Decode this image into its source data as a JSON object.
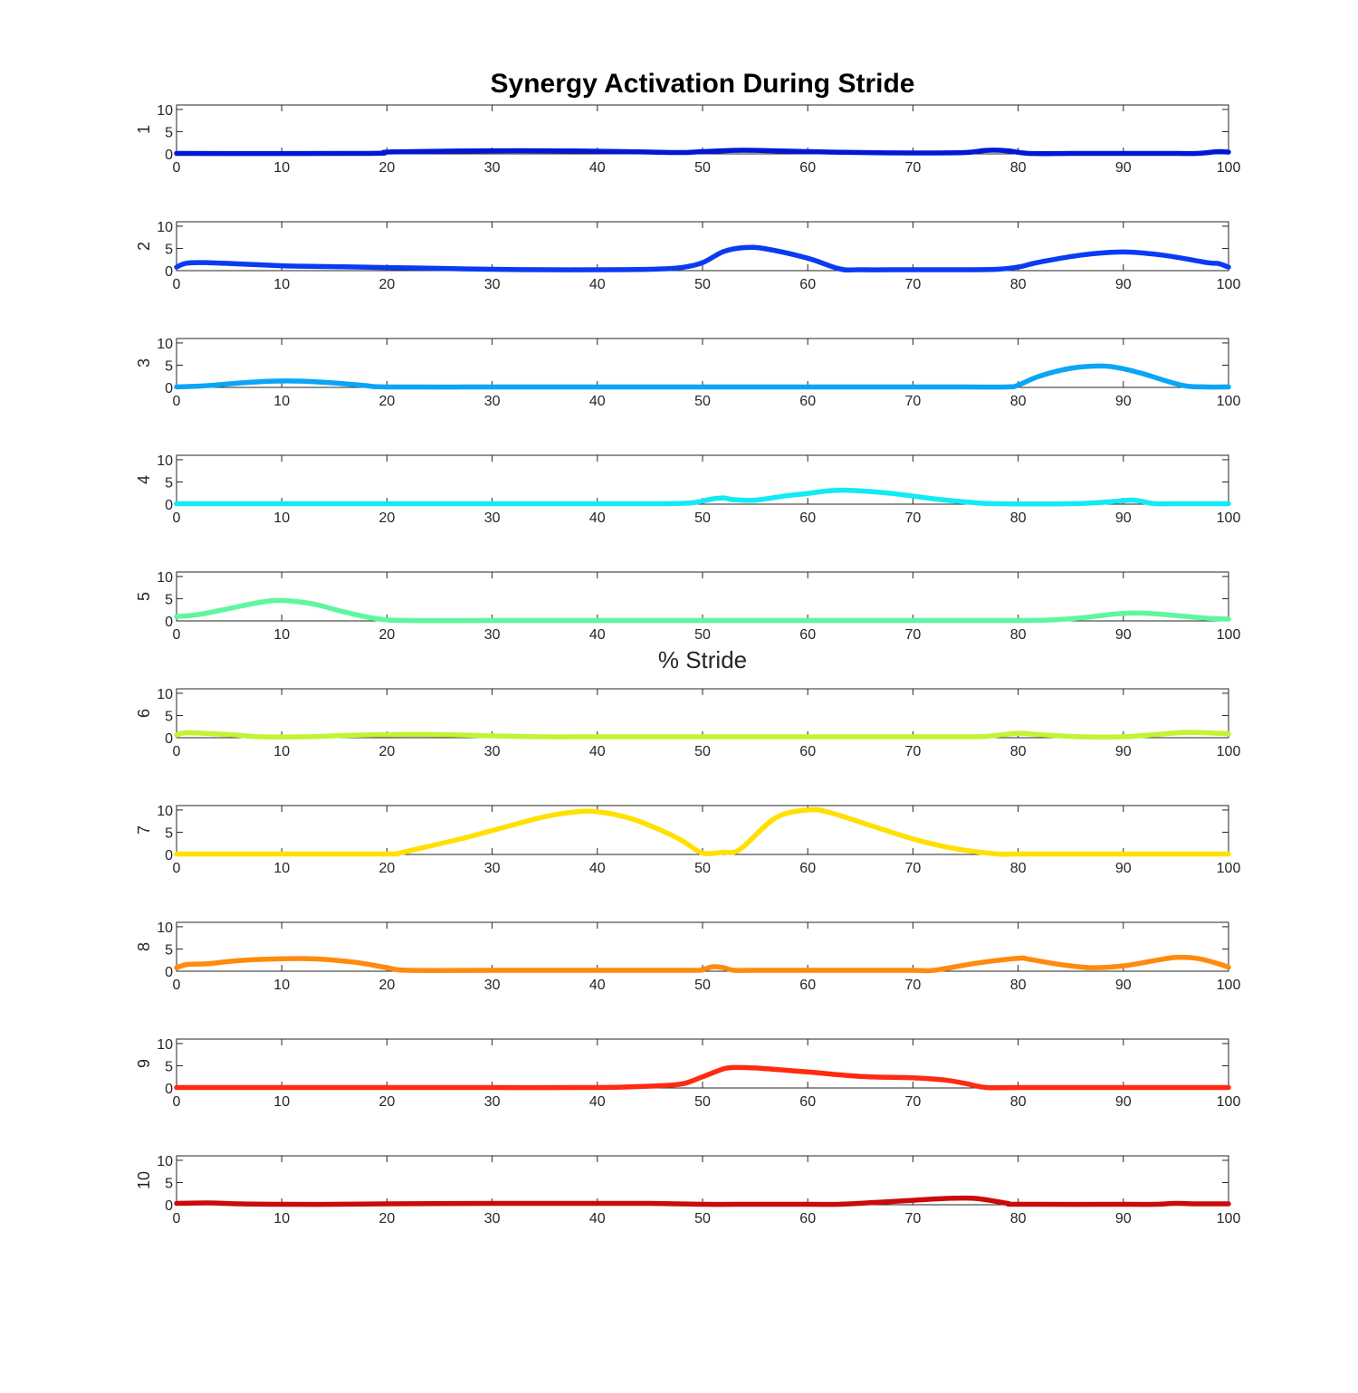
{
  "chart_data": {
    "type": "line",
    "title": "Synergy Activation During Stride",
    "xlabel": "% Stride",
    "xlim": [
      0,
      100
    ],
    "ylim": [
      0,
      11
    ],
    "x_ticks": [
      "0",
      "10",
      "20",
      "30",
      "40",
      "50",
      "60",
      "70",
      "80",
      "90",
      "100"
    ],
    "y_ticks": [
      "0",
      "5",
      "10"
    ],
    "grid": false,
    "panels": [
      {
        "ylabel": "1",
        "color": "#0018d6",
        "x": [
          0,
          18,
          20,
          25,
          30,
          35,
          40,
          45,
          48,
          50,
          53,
          55,
          60,
          65,
          70,
          75,
          77,
          79,
          81,
          85,
          90,
          95,
          97,
          99,
          100
        ],
        "y": [
          0.1,
          0.1,
          0.4,
          0.6,
          0.7,
          0.7,
          0.6,
          0.4,
          0.3,
          0.5,
          0.8,
          0.8,
          0.5,
          0.3,
          0.2,
          0.3,
          0.8,
          0.7,
          0.1,
          0.1,
          0.1,
          0.1,
          0.1,
          0.5,
          0.4
        ]
      },
      {
        "ylabel": "2",
        "color": "#0a3bf2",
        "x": [
          0,
          1,
          3,
          6,
          10,
          12,
          15,
          20,
          25,
          30,
          35,
          40,
          45,
          48,
          50,
          52,
          54,
          56,
          60,
          63,
          65,
          70,
          75,
          78,
          80,
          82,
          86,
          90,
          94,
          98,
          99,
          100
        ],
        "y": [
          0.8,
          1.7,
          1.8,
          1.5,
          1.1,
          1.0,
          0.9,
          0.7,
          0.5,
          0.3,
          0.2,
          0.2,
          0.3,
          0.7,
          1.8,
          4.3,
          5.2,
          4.9,
          2.8,
          0.4,
          0.2,
          0.2,
          0.2,
          0.3,
          0.8,
          1.9,
          3.5,
          4.2,
          3.4,
          1.8,
          1.6,
          0.8
        ]
      },
      {
        "ylabel": "3",
        "color": "#0aa5f6",
        "x": [
          0,
          3,
          6,
          9,
          12,
          15,
          18,
          20,
          30,
          40,
          50,
          60,
          70,
          75,
          79,
          80,
          82,
          85,
          88,
          90,
          92,
          94,
          96,
          98,
          100
        ],
        "y": [
          0.1,
          0.4,
          1.0,
          1.4,
          1.4,
          1.0,
          0.4,
          0.1,
          0.1,
          0.1,
          0.1,
          0.1,
          0.1,
          0.1,
          0.1,
          0.5,
          2.5,
          4.3,
          4.8,
          4.2,
          3.0,
          1.5,
          0.3,
          0.1,
          0.1
        ]
      },
      {
        "ylabel": "4",
        "color": "#12eaf4",
        "x": [
          0,
          10,
          20,
          30,
          40,
          46,
          49,
          51,
          52,
          53,
          55,
          58,
          60,
          62,
          64,
          68,
          72,
          76,
          78,
          85,
          88,
          90,
          91,
          92,
          93,
          95,
          100
        ],
        "y": [
          0.1,
          0.1,
          0.1,
          0.1,
          0.1,
          0.1,
          0.3,
          1.2,
          1.4,
          1.0,
          0.9,
          1.9,
          2.4,
          3.0,
          3.1,
          2.4,
          1.2,
          0.3,
          0.1,
          0.1,
          0.4,
          0.8,
          0.9,
          0.5,
          0.1,
          0.1,
          0.1
        ]
      },
      {
        "ylabel": "5",
        "color": "#5df7a1",
        "x": [
          0,
          2,
          5,
          8,
          10,
          13,
          16,
          19,
          22,
          30,
          40,
          50,
          60,
          70,
          80,
          83,
          86,
          89,
          91,
          93,
          96,
          98,
          100
        ],
        "y": [
          1.0,
          1.4,
          2.8,
          4.2,
          4.6,
          3.8,
          2.0,
          0.5,
          0.1,
          0.1,
          0.1,
          0.1,
          0.1,
          0.1,
          0.1,
          0.2,
          0.7,
          1.5,
          1.8,
          1.6,
          1.0,
          0.6,
          0.4
        ]
      },
      {
        "ylabel": "6",
        "color": "#c2f433",
        "x": [
          0,
          1,
          5,
          8,
          12,
          16,
          20,
          25,
          30,
          35,
          40,
          50,
          60,
          70,
          75,
          77,
          80,
          82,
          86,
          90,
          93,
          96,
          99,
          100
        ],
        "y": [
          0.6,
          1.1,
          0.7,
          0.2,
          0.2,
          0.5,
          0.7,
          0.7,
          0.4,
          0.2,
          0.2,
          0.2,
          0.2,
          0.2,
          0.2,
          0.3,
          1.0,
          0.7,
          0.2,
          0.2,
          0.7,
          1.2,
          1.0,
          0.9
        ]
      },
      {
        "ylabel": "7",
        "color": "#ffe000",
        "x": [
          0,
          10,
          20,
          21,
          23,
          27,
          31,
          35,
          38,
          40,
          43,
          46,
          48,
          50,
          52,
          53,
          54,
          57,
          60,
          62,
          66,
          70,
          74,
          78,
          80,
          90,
          100
        ],
        "y": [
          0.1,
          0.1,
          0.1,
          0.2,
          1.3,
          3.5,
          6.0,
          8.5,
          9.6,
          9.6,
          8.2,
          5.5,
          3.2,
          0.3,
          0.5,
          0.5,
          2.0,
          8.3,
          10.0,
          9.5,
          6.5,
          3.5,
          1.3,
          0.1,
          0.1,
          0.1,
          0.1
        ]
      },
      {
        "ylabel": "8",
        "color": "#ff8a0e",
        "x": [
          0,
          1,
          3,
          6,
          10,
          13,
          17,
          20,
          22,
          30,
          40,
          49,
          50,
          51,
          52,
          53,
          55,
          60,
          65,
          70,
          72,
          76,
          80,
          81,
          84,
          87,
          90,
          93,
          95,
          97,
          99,
          100
        ],
        "y": [
          0.8,
          1.5,
          1.7,
          2.4,
          2.8,
          2.8,
          2.0,
          0.8,
          0.2,
          0.2,
          0.2,
          0.2,
          0.4,
          1.0,
          0.8,
          0.2,
          0.2,
          0.2,
          0.2,
          0.2,
          0.2,
          1.8,
          2.9,
          2.7,
          1.5,
          0.8,
          1.2,
          2.4,
          3.1,
          2.9,
          1.7,
          0.9
        ]
      },
      {
        "ylabel": "9",
        "color": "#ff2a10",
        "x": [
          0,
          10,
          20,
          30,
          40,
          45,
          48,
          50,
          52,
          53,
          55,
          60,
          65,
          70,
          73,
          75,
          77,
          80,
          90,
          100
        ],
        "y": [
          0.1,
          0.1,
          0.1,
          0.1,
          0.1,
          0.4,
          0.9,
          2.5,
          4.3,
          4.6,
          4.5,
          3.6,
          2.6,
          2.3,
          1.8,
          1.0,
          0.1,
          0.1,
          0.1,
          0.1
        ]
      },
      {
        "ylabel": "10",
        "color": "#cc0a0a",
        "x": [
          0,
          3,
          6,
          10,
          15,
          20,
          30,
          40,
          45,
          50,
          55,
          60,
          63,
          67,
          70,
          73,
          76,
          79,
          80,
          90,
          93,
          95,
          97,
          100
        ],
        "y": [
          0.3,
          0.4,
          0.2,
          0.1,
          0.1,
          0.2,
          0.3,
          0.3,
          0.3,
          0.1,
          0.1,
          0.1,
          0.1,
          0.6,
          1.0,
          1.4,
          1.4,
          0.3,
          0.1,
          0.1,
          0.1,
          0.3,
          0.2,
          0.2
        ]
      }
    ]
  }
}
